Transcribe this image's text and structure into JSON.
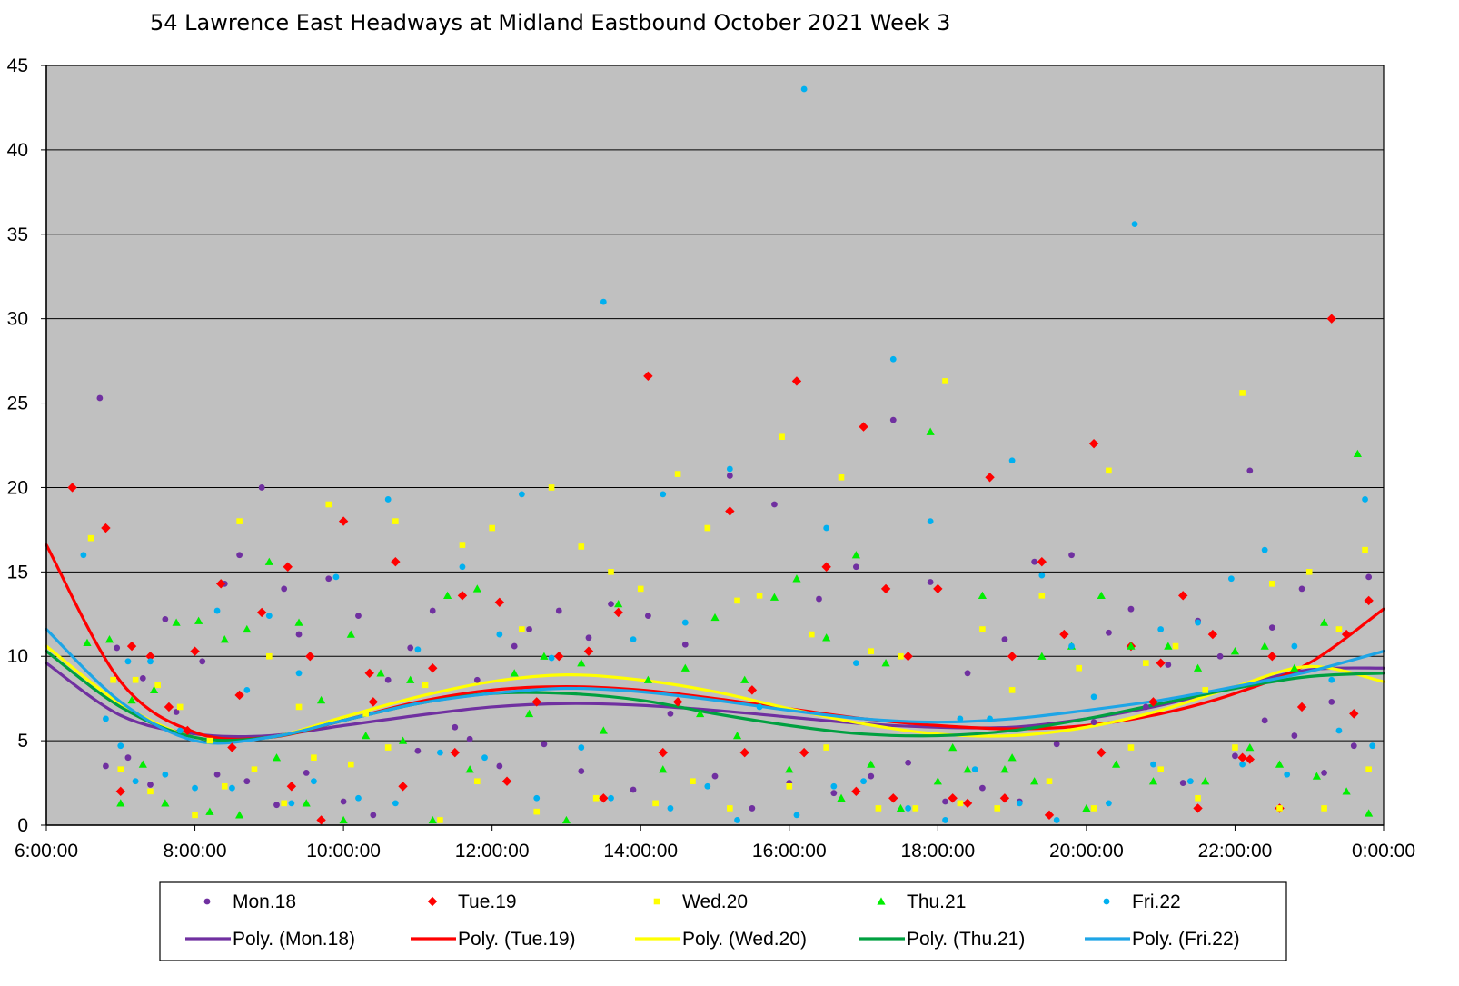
{
  "chart_data": {
    "type": "scatter",
    "title": "54 Lawrence East Headways at Midland Eastbound October 2021  Week 3",
    "xlabel": "",
    "ylabel": "",
    "x_unit": "hours",
    "xlim": [
      6,
      24
    ],
    "ylim": [
      0,
      45
    ],
    "xticks": [
      6,
      8,
      10,
      12,
      14,
      16,
      18,
      20,
      22,
      24
    ],
    "xtick_labels": [
      "6:00:00",
      "8:00:00",
      "10:00:00",
      "12:00:00",
      "14:00:00",
      "16:00:00",
      "18:00:00",
      "20:00:00",
      "22:00:00",
      "0:00:00"
    ],
    "yticks": [
      0,
      5,
      10,
      15,
      20,
      25,
      30,
      35,
      40,
      45
    ],
    "ytick_labels": [
      "0",
      "5",
      "10",
      "15",
      "20",
      "25",
      "30",
      "35",
      "40",
      "45"
    ],
    "grid": "horizontal",
    "plot_background": "#c0c0c0",
    "legend_position": "bottom",
    "series": [
      {
        "name": "Mon.18",
        "marker": "circle",
        "color": "#7030a0",
        "x": [
          6.72,
          6.95,
          7.3,
          7.6,
          7.75,
          8.1,
          8.4,
          8.6,
          8.9,
          9.2,
          9.4,
          9.8,
          10.2,
          10.6,
          10.9,
          11.2,
          11.5,
          11.8,
          12.3,
          12.5,
          12.9,
          13.3,
          13.6,
          14.1,
          14.6,
          15.2,
          15.8,
          16.4,
          16.9,
          17.4,
          17.9,
          18.4,
          18.9,
          19.3,
          19.8,
          20.3,
          20.6,
          21.1,
          21.5,
          21.8,
          22.2,
          22.5,
          22.9,
          23.3,
          23.8,
          6.8,
          7.1,
          7.4,
          8.3,
          8.7,
          9.1,
          9.5,
          10.0,
          10.4,
          11.0,
          11.7,
          12.1,
          12.7,
          13.2,
          13.9,
          14.4,
          15.0,
          15.5,
          16.0,
          16.6,
          17.1,
          17.6,
          18.1,
          18.6,
          19.1,
          19.6,
          20.1,
          20.8,
          21.3,
          22.0,
          22.4,
          22.8,
          23.2,
          23.6
        ],
        "y": [
          25.3,
          10.5,
          8.7,
          12.2,
          6.7,
          9.7,
          14.3,
          16.0,
          20.0,
          14.0,
          11.3,
          14.6,
          12.4,
          8.6,
          10.5,
          12.7,
          5.8,
          8.6,
          10.6,
          11.6,
          12.7,
          11.1,
          13.1,
          12.4,
          10.7,
          20.7,
          19.0,
          13.4,
          15.3,
          24.0,
          14.4,
          9.0,
          11.0,
          15.6,
          16.0,
          11.4,
          12.8,
          9.5,
          12.1,
          10.0,
          21.0,
          11.7,
          14.0,
          7.3,
          14.7,
          3.5,
          4.0,
          2.4,
          3.0,
          2.6,
          1.2,
          3.1,
          1.4,
          0.6,
          4.4,
          5.1,
          3.5,
          4.8,
          3.2,
          2.1,
          6.6,
          2.9,
          1.0,
          2.5,
          1.9,
          2.9,
          3.7,
          1.4,
          2.2,
          1.4,
          4.8,
          6.1,
          7.0,
          2.5,
          4.1,
          6.2,
          5.3,
          3.1,
          4.7
        ]
      },
      {
        "name": "Tue.19",
        "marker": "diamond",
        "color": "#ff0000",
        "x": [
          6.35,
          6.8,
          7.15,
          7.4,
          7.65,
          8.0,
          8.35,
          8.6,
          8.9,
          9.25,
          9.55,
          10.0,
          10.35,
          10.7,
          11.2,
          11.6,
          12.1,
          12.6,
          13.3,
          13.7,
          14.1,
          14.5,
          15.2,
          15.5,
          16.1,
          16.5,
          17.0,
          17.3,
          17.6,
          18.0,
          18.4,
          18.7,
          19.0,
          19.4,
          19.7,
          20.1,
          20.6,
          21.0,
          21.3,
          21.7,
          22.1,
          22.5,
          22.9,
          23.3,
          23.5,
          23.8,
          7.0,
          7.9,
          8.5,
          9.3,
          9.7,
          10.4,
          10.8,
          11.5,
          12.2,
          12.9,
          13.5,
          14.3,
          15.4,
          16.2,
          16.9,
          17.4,
          18.2,
          18.9,
          19.5,
          20.2,
          20.9,
          21.5,
          22.2,
          22.6,
          23.6
        ],
        "y": [
          20.0,
          17.6,
          10.6,
          10.0,
          7.0,
          10.3,
          14.3,
          7.7,
          12.6,
          15.3,
          10.0,
          18.0,
          9.0,
          15.6,
          9.3,
          13.6,
          13.2,
          7.3,
          10.3,
          12.6,
          26.6,
          7.3,
          18.6,
          8.0,
          26.3,
          15.3,
          23.6,
          14.0,
          10.0,
          14.0,
          1.3,
          20.6,
          10.0,
          15.6,
          11.3,
          22.6,
          10.6,
          9.6,
          13.6,
          11.3,
          4.0,
          10.0,
          7.0,
          30.0,
          11.3,
          13.3,
          2.0,
          5.6,
          4.6,
          2.3,
          0.3,
          7.3,
          2.3,
          4.3,
          2.6,
          10.0,
          1.6,
          4.3,
          4.3,
          4.3,
          2.0,
          1.6,
          1.6,
          1.6,
          0.6,
          4.3,
          7.3,
          1.0,
          3.9,
          1.0,
          6.6
        ]
      },
      {
        "name": "Wed.20",
        "marker": "square",
        "color": "#ffff00",
        "x": [
          6.6,
          6.9,
          7.2,
          7.5,
          7.8,
          8.2,
          8.6,
          9.0,
          9.4,
          9.8,
          10.3,
          10.7,
          11.1,
          11.6,
          12.0,
          12.4,
          12.8,
          13.2,
          13.6,
          14.0,
          14.5,
          14.9,
          15.3,
          15.6,
          15.9,
          16.3,
          16.7,
          17.1,
          17.5,
          18.1,
          18.6,
          19.0,
          19.4,
          19.9,
          20.3,
          20.8,
          21.2,
          21.6,
          22.1,
          22.5,
          23.0,
          23.4,
          23.75,
          7.0,
          7.4,
          8.0,
          8.4,
          8.8,
          9.2,
          9.6,
          10.1,
          10.6,
          11.3,
          11.8,
          12.6,
          13.4,
          14.2,
          14.7,
          15.2,
          16.0,
          16.5,
          17.2,
          17.7,
          18.3,
          18.8,
          19.5,
          20.1,
          20.6,
          21.0,
          21.5,
          22.0,
          22.6,
          23.2,
          23.8
        ],
        "y": [
          17.0,
          8.6,
          8.6,
          8.3,
          7.0,
          5.0,
          18.0,
          10.0,
          7.0,
          19.0,
          6.6,
          18.0,
          8.3,
          16.6,
          17.6,
          11.6,
          20.0,
          16.5,
          15.0,
          14.0,
          20.8,
          17.6,
          13.3,
          13.6,
          23.0,
          11.3,
          20.6,
          10.3,
          10.0,
          26.3,
          11.6,
          8.0,
          13.6,
          9.3,
          21.0,
          9.6,
          10.6,
          8.0,
          25.6,
          14.3,
          15.0,
          11.6,
          16.3,
          3.3,
          2.0,
          0.6,
          2.3,
          3.3,
          1.3,
          4.0,
          3.6,
          4.6,
          0.3,
          2.6,
          0.8,
          1.6,
          1.3,
          2.6,
          1.0,
          2.3,
          4.6,
          1.0,
          1.0,
          1.3,
          1.0,
          2.6,
          1.0,
          4.6,
          3.3,
          1.6,
          4.6,
          1.0,
          1.0,
          3.3
        ]
      },
      {
        "name": "Thu.21",
        "marker": "triangle",
        "color": "#00ee00",
        "x": [
          6.55,
          6.85,
          7.15,
          7.45,
          7.75,
          8.05,
          8.4,
          8.7,
          9.0,
          9.4,
          9.7,
          10.1,
          10.5,
          10.9,
          11.4,
          11.8,
          12.3,
          12.7,
          13.2,
          13.7,
          14.1,
          14.6,
          15.0,
          15.4,
          15.8,
          16.1,
          16.5,
          16.9,
          17.3,
          17.9,
          18.2,
          18.6,
          19.0,
          19.4,
          19.8,
          20.2,
          20.6,
          21.1,
          21.5,
          22.0,
          22.4,
          22.8,
          23.2,
          23.65,
          7.0,
          7.3,
          7.6,
          8.2,
          8.6,
          9.1,
          9.5,
          10.0,
          10.3,
          10.8,
          11.2,
          11.7,
          12.5,
          13.0,
          13.5,
          14.3,
          14.8,
          15.3,
          16.0,
          16.7,
          17.1,
          17.5,
          18.0,
          18.4,
          18.9,
          19.3,
          20.0,
          20.4,
          20.9,
          21.6,
          22.2,
          22.6,
          23.1,
          23.5,
          23.8
        ],
        "y": [
          10.8,
          11.0,
          7.4,
          8.0,
          12.0,
          12.1,
          11.0,
          11.6,
          15.6,
          12.0,
          7.4,
          11.3,
          9.0,
          8.6,
          13.6,
          14.0,
          9.0,
          10.0,
          9.6,
          13.1,
          8.6,
          9.3,
          12.3,
          8.6,
          13.5,
          14.6,
          11.1,
          16.0,
          9.6,
          23.3,
          4.6,
          13.6,
          4.0,
          10.0,
          10.6,
          13.6,
          10.6,
          10.6,
          9.3,
          10.3,
          10.6,
          9.3,
          12.0,
          22.0,
          1.3,
          3.6,
          1.3,
          0.8,
          0.6,
          4.0,
          1.3,
          0.3,
          5.3,
          5.0,
          0.3,
          3.3,
          6.6,
          0.3,
          5.6,
          3.3,
          6.6,
          5.3,
          3.3,
          1.6,
          3.6,
          1.0,
          2.6,
          3.3,
          3.3,
          2.6,
          1.0,
          3.6,
          2.6,
          2.6,
          4.6,
          3.6,
          2.9,
          2.0,
          0.7
        ]
      },
      {
        "name": "Fri.22",
        "marker": "circle",
        "color": "#00b0f0",
        "x": [
          6.5,
          6.8,
          7.1,
          7.4,
          7.8,
          8.3,
          8.7,
          9.0,
          9.4,
          9.9,
          10.6,
          11.0,
          11.6,
          12.1,
          12.4,
          12.8,
          13.5,
          13.9,
          14.3,
          14.6,
          15.2,
          15.6,
          16.2,
          16.5,
          16.9,
          17.4,
          17.9,
          18.3,
          18.7,
          19.0,
          19.4,
          19.8,
          20.1,
          20.65,
          21.0,
          21.5,
          21.95,
          22.4,
          22.8,
          23.3,
          23.75,
          23.85,
          7.0,
          7.2,
          7.6,
          8.0,
          8.5,
          9.3,
          9.6,
          10.2,
          10.7,
          11.3,
          11.9,
          12.6,
          13.2,
          13.6,
          14.4,
          14.9,
          15.3,
          16.1,
          16.6,
          17.0,
          17.6,
          18.1,
          18.5,
          19.1,
          19.6,
          20.3,
          20.9,
          21.4,
          22.1,
          22.7,
          23.4
        ],
        "y": [
          16.0,
          6.3,
          9.7,
          9.7,
          5.6,
          12.7,
          8.0,
          12.4,
          9.0,
          14.7,
          19.3,
          10.4,
          15.3,
          11.3,
          19.6,
          9.9,
          31.0,
          11.0,
          19.6,
          12.0,
          21.1,
          7.0,
          43.6,
          17.6,
          9.6,
          27.6,
          18.0,
          6.3,
          6.3,
          21.6,
          14.8,
          10.6,
          7.6,
          35.6,
          11.6,
          12.0,
          14.6,
          16.3,
          10.6,
          8.6,
          19.3,
          4.7,
          4.7,
          2.6,
          3.0,
          2.2,
          2.2,
          1.3,
          2.6,
          1.6,
          1.3,
          4.3,
          4.0,
          1.6,
          4.6,
          1.6,
          1.0,
          2.3,
          0.3,
          0.6,
          2.3,
          2.6,
          1.0,
          0.3,
          3.3,
          1.3,
          0.3,
          1.3,
          3.6,
          2.6,
          3.6,
          3.0,
          5.6
        ]
      }
    ],
    "trendlines": [
      {
        "name": "Poly. (Mon.18)",
        "color": "#7030a0",
        "x": [
          6,
          7,
          8,
          9,
          10,
          11,
          12,
          13,
          14,
          15,
          16,
          17,
          18,
          19,
          20,
          21,
          22,
          23,
          24
        ],
        "y": [
          9.6,
          6.5,
          5.4,
          5.3,
          5.9,
          6.5,
          7.0,
          7.2,
          7.1,
          6.8,
          6.4,
          6.0,
          5.8,
          5.8,
          6.3,
          7.1,
          8.2,
          9.2,
          9.3
        ]
      },
      {
        "name": "Poly. (Tue.19)",
        "color": "#ff0000",
        "x": [
          6,
          7,
          8,
          9,
          10,
          11,
          12,
          13,
          14,
          15,
          16,
          17,
          18,
          19,
          20,
          21,
          22,
          23,
          24
        ],
        "y": [
          16.6,
          8.5,
          5.5,
          5.2,
          6.2,
          7.3,
          8.0,
          8.2,
          8.0,
          7.5,
          6.9,
          6.3,
          5.9,
          5.7,
          5.9,
          6.6,
          7.8,
          9.6,
          12.8
        ]
      },
      {
        "name": "Poly. (Wed.20)",
        "color": "#ffff00",
        "x": [
          6,
          7,
          8,
          9,
          10,
          11,
          12,
          13,
          14,
          15,
          16,
          17,
          18,
          19,
          20,
          21,
          22,
          23,
          24
        ],
        "y": [
          10.6,
          7.2,
          5.2,
          5.2,
          6.4,
          7.6,
          8.5,
          8.9,
          8.6,
          7.9,
          6.9,
          6.0,
          5.4,
          5.3,
          5.8,
          6.8,
          8.2,
          9.4,
          8.5
        ]
      },
      {
        "name": "Poly. (Thu.21)",
        "color": "#00a040",
        "x": [
          6,
          7,
          8,
          9,
          10,
          11,
          12,
          13,
          14,
          15,
          16,
          17,
          18,
          19,
          20,
          21,
          22,
          23,
          24
        ],
        "y": [
          10.3,
          7.0,
          5.2,
          5.2,
          6.2,
          7.2,
          7.8,
          7.8,
          7.4,
          6.6,
          5.9,
          5.4,
          5.3,
          5.6,
          6.3,
          7.2,
          8.1,
          8.8,
          9.0
        ]
      },
      {
        "name": "Poly. (Fri.22)",
        "color": "#1ea5e6",
        "x": [
          6,
          7,
          8,
          9,
          10,
          11,
          12,
          13,
          14,
          15,
          16,
          17,
          18,
          19,
          20,
          21,
          22,
          23,
          24
        ],
        "y": [
          11.6,
          7.3,
          5.0,
          5.2,
          6.2,
          7.2,
          7.8,
          8.1,
          7.9,
          7.4,
          6.8,
          6.3,
          6.1,
          6.3,
          6.8,
          7.4,
          8.2,
          9.1,
          10.3
        ]
      }
    ]
  }
}
